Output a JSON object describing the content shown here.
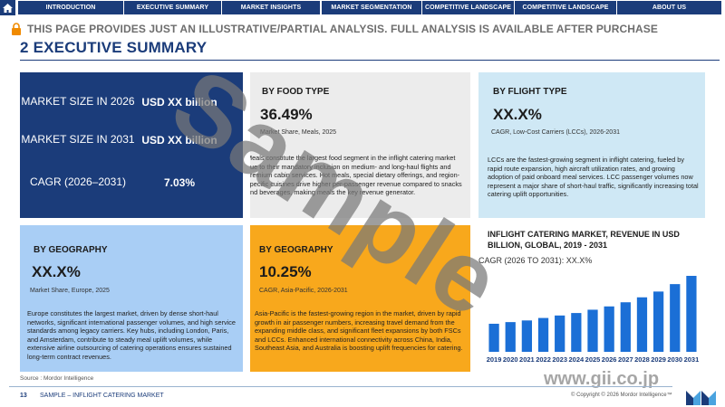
{
  "nav": {
    "tabs": [
      "INTRODUCTION",
      "EXECUTIVE SUMMARY",
      "MARKET INSIGHTS",
      "MARKET SEGMENTATION",
      "COMPETITIVE LANDSCAPE",
      "COMPETITIVE LANDSCAPE",
      "ABOUT US"
    ]
  },
  "notice": "THIS PAGE PROVIDES JUST AN ILLUSTRATIVE/PARTIAL ANALYSIS. FULL ANALYSIS IS AVAILABLE AFTER PURCHASE",
  "title": "2 EXECUTIVE SUMMARY",
  "summary": {
    "size_2026_label": "MARKET SIZE IN 2026",
    "size_2026_value": "USD XX billion",
    "size_2031_label": "MARKET SIZE IN 2031",
    "size_2031_value": "USD XX billion",
    "cagr_label": "CAGR (2026–2031)",
    "cagr_value": "7.03%"
  },
  "food": {
    "heading": "BY FOOD TYPE",
    "value": "36.49%",
    "caption": "Market Share, Meals, 2025",
    "text": "Meals constitute the largest food segment in the inflight catering market due to their mandatory inclusion on medium- and long-haul flights and premium cabin services. Hot meals, special dietary offerings, and region-specific cuisines drive higher per-passenger revenue compared to snacks and beverages, making meals the key revenue generator."
  },
  "flight": {
    "heading": "BY FLIGHT TYPE",
    "value": "XX.X%",
    "caption": "CAGR, Low-Cost Carriers (LCCs), 2026-2031",
    "text": "LCCs are the fastest-growing segment in inflight catering, fueled by rapid route expansion, high aircraft utilization rates, and growing adoption of paid onboard meal services. LCC passenger volumes now represent a major share of short-haul traffic, significantly increasing total catering uplift opportunities."
  },
  "geo_europe": {
    "heading": "BY GEOGRAPHY",
    "value": "XX.X%",
    "caption": "Market Share, Europe, 2025",
    "text": "Europe constitutes the largest market, driven by dense short-haul networks, significant international passenger volumes, and high service standards among legacy carriers. Key hubs, including London, Paris, and Amsterdam, contribute to steady meal uplift volumes, while extensive airline outsourcing of catering operations ensures sustained long-term contract revenues."
  },
  "geo_apac": {
    "heading": "BY GEOGRAPHY",
    "value": "10.25%",
    "caption": "CAGR, Asia-Pacific, 2026-2031",
    "text": "Asia-Pacific is the fastest-growing region in the market, driven by rapid growth in air passenger numbers, increasing travel demand from the expanding middle class, and significant fleet expansions by both FSCs and LCCs. Enhanced international connectivity across China, India, Southeast Asia, and Australia is boosting uplift frequencies for catering."
  },
  "chart_data": {
    "type": "bar",
    "title": "INFLIGHT CATERING MARKET, REVENUE IN USD BILLION, GLOBAL, 2019 - 2031",
    "subtitle": "CAGR (2026 TO 2031): XX.X%",
    "categories": [
      "2019",
      "2020",
      "2021",
      "2022",
      "2023",
      "2024",
      "2025",
      "2026",
      "2027",
      "2028",
      "2029",
      "2030",
      "2031"
    ],
    "values": [
      0.34,
      0.36,
      0.38,
      0.41,
      0.44,
      0.47,
      0.51,
      0.55,
      0.6,
      0.66,
      0.73,
      0.82,
      0.92
    ],
    "value_unit": "relative bar height (values not shown)",
    "color": "#1b6fd6"
  },
  "footer": {
    "page": "13",
    "label": "SAMPLE – INFLIGHT CATERING MARKET",
    "source": "Source : Mordor Intelligence",
    "copyright": "© Copyright © 2026 Mordor Intelligence™"
  },
  "watermark": {
    "sample": "Sample",
    "site": "www.gii.co.jp"
  },
  "colors": {
    "navy": "#1b3c7a",
    "orange": "#f8a81c",
    "light_blue": "#cfe8f5",
    "mid_blue": "#a9cef5"
  }
}
